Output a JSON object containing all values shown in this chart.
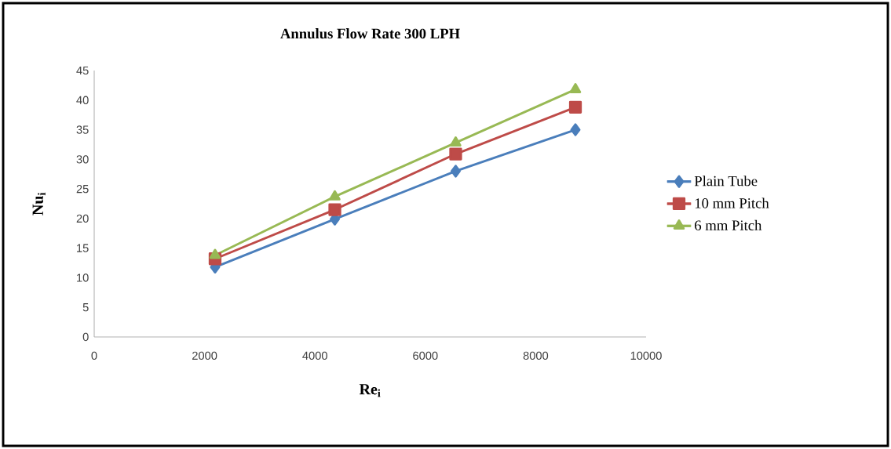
{
  "chart_data": {
    "type": "line",
    "title": "Annulus Flow Rate 300 LPH",
    "xlabel": "Re$_{i}$",
    "ylabel": "Nu$_{i}$",
    "series": [
      {
        "name": "Plain Tube",
        "color": "#4a7ebb",
        "marker": "diamond",
        "x": [
          2190,
          4360,
          6550,
          8720
        ],
        "values": [
          11.8,
          19.9,
          28.0,
          35.0
        ]
      },
      {
        "name": "10 mm Pitch",
        "color": "#be4b48",
        "marker": "square",
        "x": [
          2190,
          4360,
          6550,
          8720
        ],
        "values": [
          13.2,
          21.5,
          30.9,
          38.8
        ]
      },
      {
        "name": "6 mm Pitch",
        "color": "#98b954",
        "marker": "triangle",
        "x": [
          2190,
          4360,
          6550,
          8720
        ],
        "values": [
          13.8,
          23.7,
          32.8,
          41.8
        ]
      }
    ],
    "xlim": [
      0,
      10000
    ],
    "xticks": [
      0,
      2000,
      4000,
      6000,
      8000,
      10000
    ],
    "ylim": [
      0,
      45
    ],
    "yticks": [
      0,
      5,
      10,
      15,
      20,
      25,
      30,
      35,
      40,
      45
    ],
    "grid": false,
    "legend": "right",
    "line_style": "solid"
  }
}
